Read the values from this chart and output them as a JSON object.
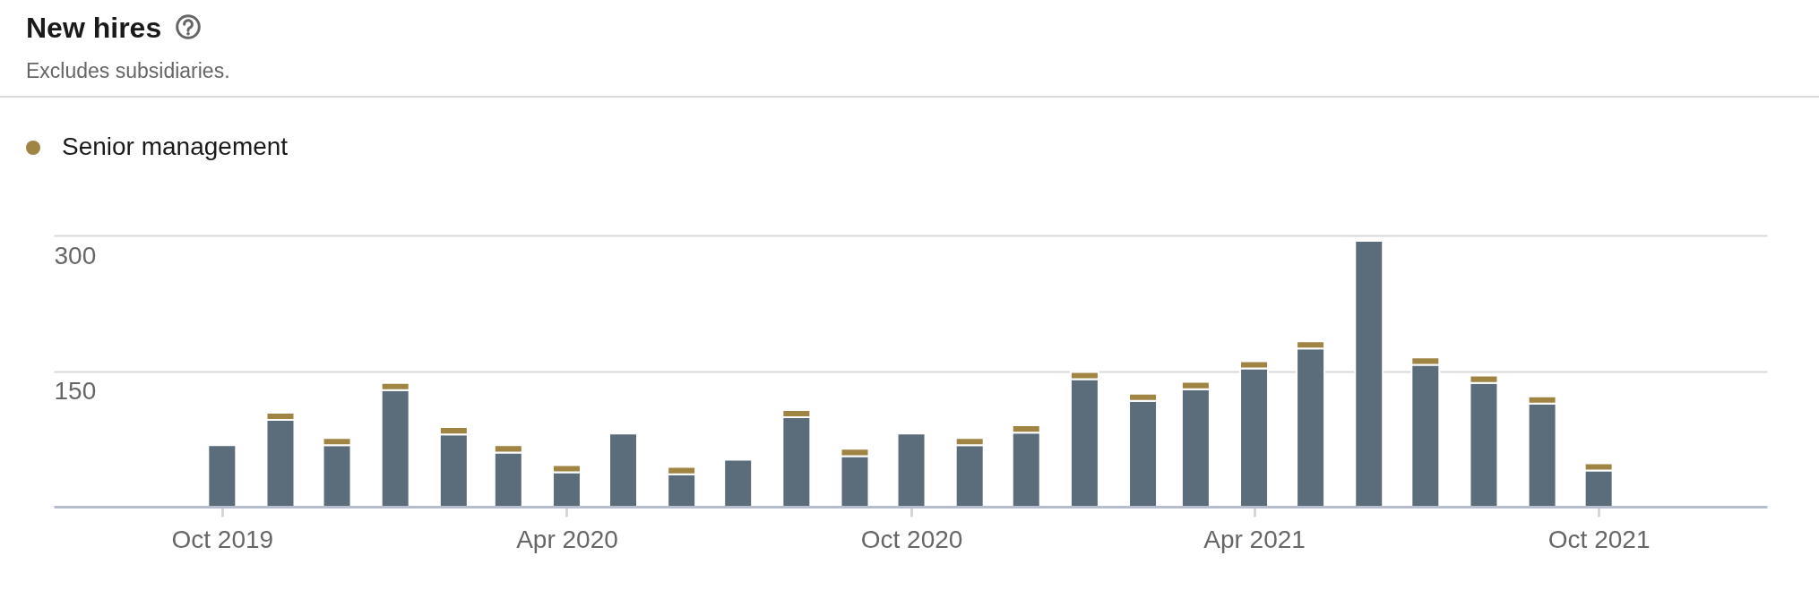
{
  "chart_data": {
    "type": "bar",
    "title": "New hires",
    "subtitle": "Excludes subsidiaries.",
    "x": [
      "2019-10",
      "2019-11",
      "2019-12",
      "2020-01",
      "2020-02",
      "2020-03",
      "2020-04",
      "2020-05",
      "2020-06",
      "2020-07",
      "2020-08",
      "2020-09",
      "2020-10",
      "2020-11",
      "2020-12",
      "2021-01",
      "2021-02",
      "2021-03",
      "2021-04",
      "2021-05",
      "2021-06",
      "2021-07",
      "2021-08",
      "2021-09",
      "2021-10"
    ],
    "series": [
      {
        "color": "#5b6d7b",
        "values": [
          68,
          96,
          68,
          129,
          80,
          60,
          38,
          81,
          36,
          52,
          99,
          56,
          81,
          68,
          82,
          141,
          117,
          130,
          153,
          175,
          294,
          157,
          137,
          114,
          40
        ]
      },
      {
        "name": "Senior management",
        "color": "#9f8443",
        "values": [
          null,
          8,
          8,
          8,
          8,
          8,
          8,
          null,
          8,
          null,
          8,
          8,
          null,
          8,
          8,
          8,
          8,
          8,
          8,
          8,
          null,
          8,
          8,
          8,
          8
        ]
      }
    ],
    "stacked": true,
    "xlim": [
      "2019-07-06",
      "2021-12-27"
    ],
    "xticks": [
      {
        "value": "2019-10",
        "label": "Oct 2019"
      },
      {
        "value": "2020-04",
        "label": "Apr 2020"
      },
      {
        "value": "2020-10",
        "label": "Oct 2020"
      },
      {
        "value": "2021-04",
        "label": "Apr 2021"
      },
      {
        "value": "2021-10",
        "label": "Oct 2021"
      }
    ],
    "ylim": [
      0,
      300
    ],
    "yticks": [
      150,
      300
    ],
    "grid": "y",
    "legend": "top left"
  }
}
